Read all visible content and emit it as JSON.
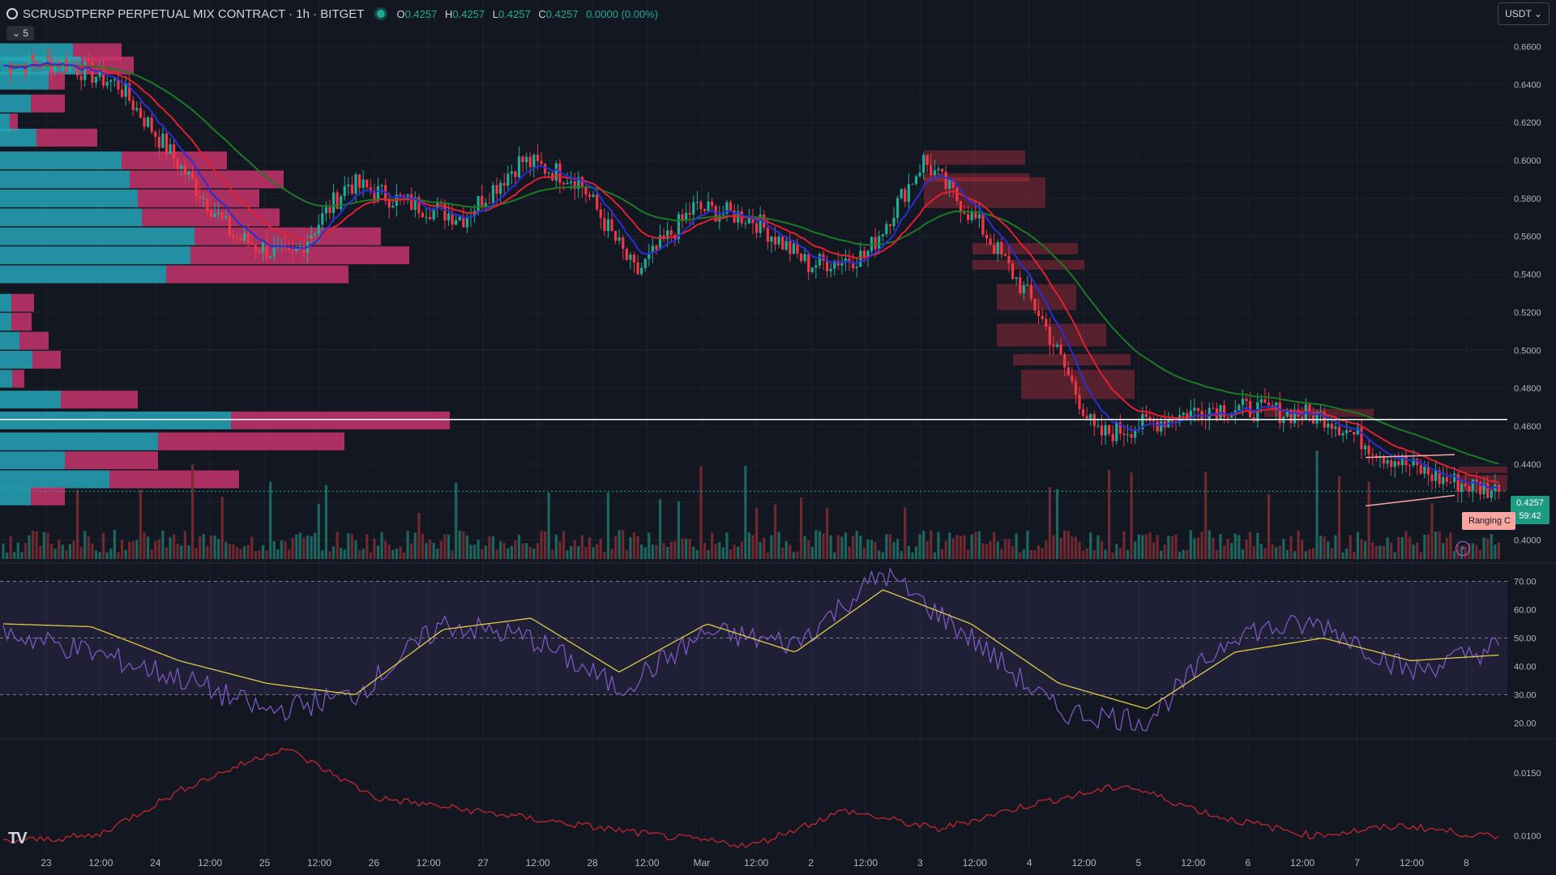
{
  "header": {
    "symbol_title": "SCRUSDTPERP PERPETUAL MIX CONTRACT · 1h · BITGET",
    "ohlc": [
      {
        "label": "O",
        "value": "0.4257"
      },
      {
        "label": "H",
        "value": "0.4257"
      },
      {
        "label": "L",
        "value": "0.4257"
      },
      {
        "label": "C",
        "value": "0.4257"
      }
    ],
    "change": "0.0000 (0.00%)",
    "collapse_label": "5",
    "currency": "USDT"
  },
  "last_price": {
    "price": "0.4257",
    "countdown": "59:42"
  },
  "ranging_label": "Ranging C",
  "logo_text": "TV",
  "colors": {
    "background": "#131722",
    "up": "#22ab94",
    "down": "#f23645",
    "ema_fast": "#2a2ed6",
    "ema_mid": "#e2202f",
    "ema_slow": "#1d7a22",
    "rsi": "#7e57c2",
    "rsi_ma": "#e0c94a",
    "atr": "#c2272d",
    "grid": "#1e222d",
    "text": "#b2b5be"
  },
  "chart_data": [
    {
      "type": "candlestick",
      "panel": "price",
      "price_axis": {
        "ylim": [
          0.39,
          0.67
        ],
        "ticks": [
          "0.6600",
          "0.6400",
          "0.6200",
          "0.6000",
          "0.5800",
          "0.5600",
          "0.5400",
          "0.5200",
          "0.5000",
          "0.4800",
          "0.4600",
          "0.4400",
          "0.4200",
          "0.4000"
        ]
      },
      "x_axis_labels": [
        "23",
        "12:00",
        "24",
        "12:00",
        "25",
        "12:00",
        "26",
        "12:00",
        "27",
        "12:00",
        "28",
        "12:00",
        "Mar",
        "12:00",
        "2",
        "12:00",
        "3",
        "12:00",
        "4",
        "12:00",
        "5",
        "12:00",
        "6",
        "12:00",
        "7",
        "12:00",
        "8"
      ],
      "key_points": [
        {
          "label": "22 18:00",
          "close": 0.65
        },
        {
          "label": "23 12:00",
          "close": 0.652
        },
        {
          "label": "24 00:00",
          "close": 0.64
        },
        {
          "label": "24 12:00",
          "close": 0.6
        },
        {
          "label": "25 00:00",
          "close": 0.56
        },
        {
          "label": "25 12:00",
          "close": 0.548
        },
        {
          "label": "26 00:00",
          "close": 0.588
        },
        {
          "label": "26 12:00",
          "close": 0.578
        },
        {
          "label": "27 00:00",
          "close": 0.57
        },
        {
          "label": "27 12:00",
          "close": 0.6
        },
        {
          "label": "28 00:00",
          "close": 0.59
        },
        {
          "label": "28 12:00",
          "close": 0.54
        },
        {
          "label": "Mar 00:00",
          "close": 0.575
        },
        {
          "label": "Mar 12:00",
          "close": 0.57
        },
        {
          "label": "2 00:00",
          "close": 0.545
        },
        {
          "label": "2 12:00",
          "close": 0.55
        },
        {
          "label": "3 00:00",
          "close": 0.6
        },
        {
          "label": "3 12:00",
          "close": 0.565
        },
        {
          "label": "4 00:00",
          "close": 0.52
        },
        {
          "label": "4 12:00",
          "close": 0.455
        },
        {
          "label": "5 00:00",
          "close": 0.462
        },
        {
          "label": "5 12:00",
          "close": 0.47
        },
        {
          "label": "6 00:00",
          "close": 0.468
        },
        {
          "label": "6 12:00",
          "close": 0.465
        },
        {
          "label": "7 00:00",
          "close": 0.445
        },
        {
          "label": "7 12:00",
          "close": 0.432
        },
        {
          "label": "8 00:00",
          "close": 0.4257
        }
      ],
      "horizontal_line": 0.4635,
      "last_price": 0.4257
    },
    {
      "type": "line",
      "panel": "rsi",
      "ylim": [
        15,
        75
      ],
      "ticks": [
        "70.00",
        "60.00",
        "50.00",
        "40.00",
        "30.00",
        "20.00"
      ],
      "levels": [
        70,
        50,
        30
      ],
      "key_points": [
        {
          "label": "22 18:00",
          "rsi": 52,
          "ma": 55
        },
        {
          "label": "23 12:00",
          "rsi": 45,
          "ma": 54
        },
        {
          "label": "24 12:00",
          "rsi": 36,
          "ma": 42
        },
        {
          "label": "25 00:00",
          "rsi": 24,
          "ma": 34
        },
        {
          "label": "25 12:00",
          "rsi": 30,
          "ma": 30
        },
        {
          "label": "26 12:00",
          "rsi": 55,
          "ma": 53
        },
        {
          "label": "27 12:00",
          "rsi": 50,
          "ma": 57
        },
        {
          "label": "28 12:00",
          "rsi": 32,
          "ma": 38
        },
        {
          "label": "Mar 12:00",
          "rsi": 52,
          "ma": 55
        },
        {
          "label": "2 12:00",
          "rsi": 48,
          "ma": 45
        },
        {
          "label": "3 00:00",
          "rsi": 73,
          "ma": 67
        },
        {
          "label": "3 12:00",
          "rsi": 50,
          "ma": 55
        },
        {
          "label": "4 00:00",
          "rsi": 24,
          "ma": 34
        },
        {
          "label": "4 12:00",
          "rsi": 21,
          "ma": 25
        },
        {
          "label": "5 12:00",
          "rsi": 52,
          "ma": 45
        },
        {
          "label": "6 12:00",
          "rsi": 55,
          "ma": 50
        },
        {
          "label": "7 00:00",
          "rsi": 38,
          "ma": 42
        },
        {
          "label": "8 00:00",
          "rsi": 47,
          "ma": 44
        }
      ]
    },
    {
      "type": "line",
      "panel": "atr",
      "ylim": [
        0.0088,
        0.0175
      ],
      "ticks": [
        "0.0150",
        "0.0100"
      ],
      "key_points": [
        {
          "label": "22 18:00",
          "value": 0.0095
        },
        {
          "label": "24 12:00",
          "value": 0.01
        },
        {
          "label": "25 00:00",
          "value": 0.014
        },
        {
          "label": "25 12:00",
          "value": 0.017
        },
        {
          "label": "26 12:00",
          "value": 0.013
        },
        {
          "label": "27 12:00",
          "value": 0.012
        },
        {
          "label": "28 12:00",
          "value": 0.011
        },
        {
          "label": "Mar 12:00",
          "value": 0.01
        },
        {
          "label": "2 12:00",
          "value": 0.0092
        },
        {
          "label": "3 00:00",
          "value": 0.012
        },
        {
          "label": "3 12:00",
          "value": 0.0105
        },
        {
          "label": "4 12:00",
          "value": 0.0125
        },
        {
          "label": "5 00:00",
          "value": 0.014
        },
        {
          "label": "6 00:00",
          "value": 0.0115
        },
        {
          "label": "7 00:00",
          "value": 0.01
        },
        {
          "label": "7 12:00",
          "value": 0.0108
        },
        {
          "label": "8 00:00",
          "value": 0.0098
        }
      ]
    }
  ]
}
